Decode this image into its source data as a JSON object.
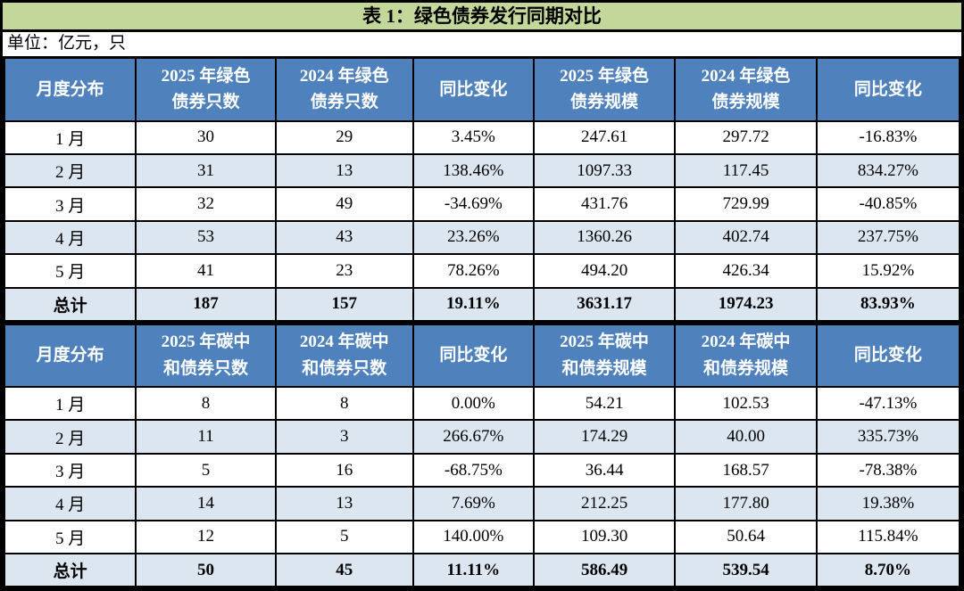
{
  "title": "表 1：绿色债券发行同期对比",
  "unit_label": "单位：亿元，只",
  "colors": {
    "title_bg": "#c4d79b",
    "header_bg": "#4f81bd",
    "header_text": "#ffffff",
    "row_alt_bg": "#dce6f1",
    "border": "#000000"
  },
  "tables": [
    {
      "name": "green-bond-table",
      "headers": [
        "月度分布",
        "2025 年绿色\n债券只数",
        "2024 年绿色\n债券只数",
        "同比变化",
        "2025 年绿色\n债券规模",
        "2024 年绿色\n债券规模",
        "同比变化"
      ],
      "rows": [
        [
          "1 月",
          "30",
          "29",
          "3.45%",
          "247.61",
          "297.72",
          "-16.83%"
        ],
        [
          "2 月",
          "31",
          "13",
          "138.46%",
          "1097.33",
          "117.45",
          "834.27%"
        ],
        [
          "3 月",
          "32",
          "49",
          "-34.69%",
          "431.76",
          "729.99",
          "-40.85%"
        ],
        [
          "4 月",
          "53",
          "43",
          "23.26%",
          "1360.26",
          "402.74",
          "237.75%"
        ],
        [
          "5 月",
          "41",
          "23",
          "78.26%",
          "494.20",
          "426.34",
          "15.92%"
        ]
      ],
      "total_row": [
        "总计",
        "187",
        "157",
        "19.11%",
        "3631.17",
        "1974.23",
        "83.93%"
      ]
    },
    {
      "name": "carbon-neutral-bond-table",
      "headers": [
        "月度分布",
        "2025 年碳中\n和债券只数",
        "2024 年碳中\n和债券只数",
        "同比变化",
        "2025 年碳中\n和债券规模",
        "2024 年碳中\n和债券规模",
        "同比变化"
      ],
      "rows": [
        [
          "1 月",
          "8",
          "8",
          "0.00%",
          "54.21",
          "102.53",
          "-47.13%"
        ],
        [
          "2 月",
          "11",
          "3",
          "266.67%",
          "174.29",
          "40.00",
          "335.73%"
        ],
        [
          "3 月",
          "5",
          "16",
          "-68.75%",
          "36.44",
          "168.57",
          "-78.38%"
        ],
        [
          "4 月",
          "14",
          "13",
          "7.69%",
          "212.25",
          "177.80",
          "19.38%"
        ],
        [
          "5 月",
          "12",
          "5",
          "140.00%",
          "109.30",
          "50.64",
          "115.84%"
        ]
      ],
      "total_row": [
        "总计",
        "50",
        "45",
        "11.11%",
        "586.49",
        "539.54",
        "8.70%"
      ]
    }
  ]
}
